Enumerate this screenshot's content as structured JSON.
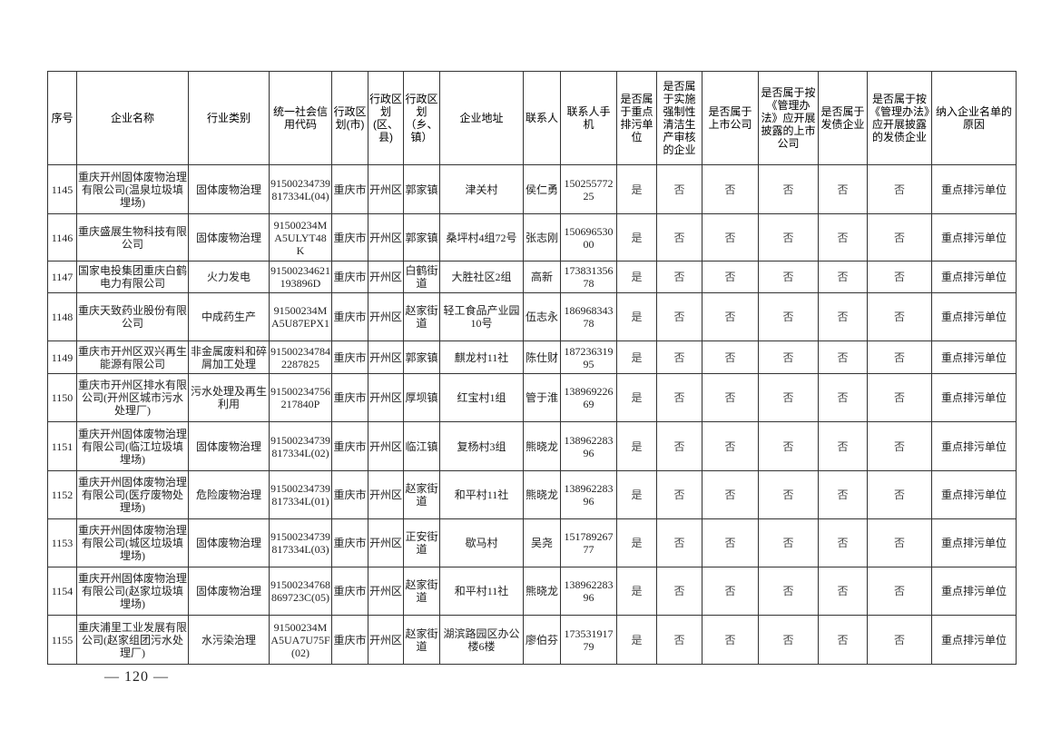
{
  "headers": [
    "序号",
    "企业名称",
    "行业类别",
    "统一社会信用代码",
    "行政区划(市)",
    "行政区划(区、县)",
    "行政区划（乡、镇）",
    "企业地址",
    "联系人",
    "联系人手机",
    "是否属于重点排污单位",
    "是否属于实施强制性清洁生产审核的企业",
    "是否属于上市公司",
    "是否属于按《管理办法》应开展披露的上市公司",
    "是否属于发债企业",
    "是否属于按《管理办法》应开展披露的发债企业",
    "纳入企业名单的原因"
  ],
  "rows": [
    [
      "1145",
      "重庆开州固体废物治理有限公司(温泉垃圾填埋场)",
      "固体废物治理",
      "91500234739817334L(04)",
      "重庆市",
      "开州区",
      "郭家镇",
      "津关村",
      "侯仁勇",
      "15025577225",
      "是",
      "否",
      "否",
      "否",
      "否",
      "否",
      "重点排污单位"
    ],
    [
      "1146",
      "重庆盛展生物科技有限公司",
      "固体废物治理",
      "91500234MA5ULYT48K",
      "重庆市",
      "开州区",
      "郭家镇",
      "桑坪村4组72号",
      "张志刚",
      "15069653000",
      "是",
      "否",
      "否",
      "否",
      "否",
      "否",
      "重点排污单位"
    ],
    [
      "1147",
      "国家电投集团重庆白鹤电力有限公司",
      "火力发电",
      "91500234621193896D",
      "重庆市",
      "开州区",
      "白鹤街道",
      "大胜社区2组",
      "高新",
      "17383135678",
      "是",
      "否",
      "否",
      "否",
      "否",
      "否",
      "重点排污单位"
    ],
    [
      "1148",
      "重庆天致药业股份有限公司",
      "中成药生产",
      "91500234MA5U87EPX1",
      "重庆市",
      "开州区",
      "赵家街道",
      "轻工食品产业园10号",
      "伍志永",
      "18696834378",
      "是",
      "否",
      "否",
      "否",
      "否",
      "否",
      "重点排污单位"
    ],
    [
      "1149",
      "重庆市开州区双兴再生能源有限公司",
      "非金属废料和碎屑加工处理",
      "915002347842287825",
      "重庆市",
      "开州区",
      "郭家镇",
      "麒龙村11社",
      "陈仕财",
      "18723631995",
      "是",
      "否",
      "否",
      "否",
      "否",
      "否",
      "重点排污单位"
    ],
    [
      "1150",
      "重庆市开州区排水有限公司(开州区城市污水处理厂)",
      "污水处理及再生利用",
      "91500234756217840P",
      "重庆市",
      "开州区",
      "厚坝镇",
      "红宝村1组",
      "管于淮",
      "13896922669",
      "是",
      "否",
      "否",
      "否",
      "否",
      "否",
      "重点排污单位"
    ],
    [
      "1151",
      "重庆开州固体废物治理有限公司(临江垃圾填埋场)",
      "固体废物治理",
      "91500234739817334L(02)",
      "重庆市",
      "开州区",
      "临江镇",
      "复杨村3组",
      "熊晓龙",
      "13896228396",
      "是",
      "否",
      "否",
      "否",
      "否",
      "否",
      "重点排污单位"
    ],
    [
      "1152",
      "重庆开州固体废物治理有限公司(医疗废物处理场)",
      "危险废物治理",
      "91500234739817334L(01)",
      "重庆市",
      "开州区",
      "赵家街道",
      "和平村11社",
      "熊晓龙",
      "13896228396",
      "是",
      "否",
      "否",
      "否",
      "否",
      "否",
      "重点排污单位"
    ],
    [
      "1153",
      "重庆开州固体废物治理有限公司(城区垃圾填埋场)",
      "固体废物治理",
      "91500234739817334L(03)",
      "重庆市",
      "开州区",
      "正安街道",
      "歇马村",
      "吴尧",
      "15178926777",
      "是",
      "否",
      "否",
      "否",
      "否",
      "否",
      "重点排污单位"
    ],
    [
      "1154",
      "重庆开州固体废物治理有限公司(赵家垃圾填埋场)",
      "固体废物治理",
      "91500234768869723C(05)",
      "重庆市",
      "开州区",
      "赵家街道",
      "和平村11社",
      "熊晓龙",
      "13896228396",
      "是",
      "否",
      "否",
      "否",
      "否",
      "否",
      "重点排污单位"
    ],
    [
      "1155",
      "重庆浦里工业发展有限公司(赵家组团污水处理厂)",
      "水污染治理",
      "91500234MA5UA7U75F(02)",
      "重庆市",
      "开州区",
      "赵家街道",
      "湖滨路园区办公楼6楼",
      "廖伯芬",
      "17353191779",
      "是",
      "否",
      "否",
      "否",
      "否",
      "否",
      "重点排污单位"
    ]
  ],
  "page_number": "— 120 —"
}
